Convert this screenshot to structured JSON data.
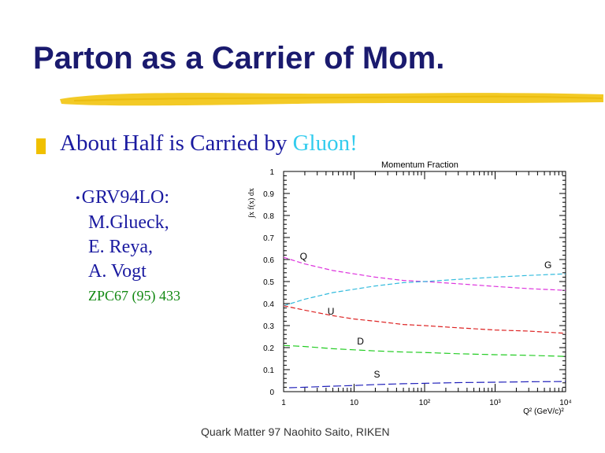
{
  "slide": {
    "title": "Parton as a Carrier of Mom.",
    "headline_main": "About Half is Carried by ",
    "headline_highlight": "Gluon!",
    "sub_items": [
      "GRV94LO:",
      "M.Glueck,",
      "E. Reya,",
      "A. Vogt"
    ],
    "reference": "ZPC67 (95) 433",
    "footer": "Quark Matter 97  Naohito Saito, RIKEN"
  },
  "colors": {
    "title": "#1a1a6e",
    "text": "#1a1aa0",
    "highlight": "#33ccee",
    "reference": "#118811",
    "bullet": "#f0c000",
    "brush": "#f2c71a"
  },
  "chart_data": {
    "type": "line",
    "title": "Momentum Fraction",
    "ylabel": "∫x f(x) dx",
    "xlabel": "Q² (GeV/c)²",
    "xscale": "log",
    "xlim": [
      1,
      10000
    ],
    "ylim": [
      0,
      1
    ],
    "x_ticks": [
      "1",
      "10",
      "10²",
      "10³",
      "10⁴"
    ],
    "y_ticks": [
      "0",
      "0.1",
      "0.2",
      "0.3",
      "0.4",
      "0.5",
      "0.6",
      "0.7",
      "0.8",
      "0.9",
      "1"
    ],
    "series": [
      {
        "name": "Q",
        "color": "#dd33dd",
        "dash": "6,3",
        "x": [
          1,
          2,
          5,
          10,
          20,
          50,
          100,
          300,
          1000,
          3000,
          10000
        ],
        "y": [
          0.61,
          0.58,
          0.55,
          0.535,
          0.52,
          0.505,
          0.5,
          0.49,
          0.478,
          0.468,
          0.46
        ]
      },
      {
        "name": "G",
        "color": "#33bbdd",
        "dash": "6,3",
        "x": [
          1,
          2,
          5,
          10,
          20,
          50,
          100,
          300,
          1000,
          3000,
          10000
        ],
        "y": [
          0.39,
          0.42,
          0.45,
          0.465,
          0.48,
          0.495,
          0.5,
          0.51,
          0.52,
          0.528,
          0.535
        ]
      },
      {
        "name": "U",
        "color": "#dd2222",
        "dash": "6,3",
        "x": [
          1,
          2,
          5,
          10,
          20,
          50,
          100,
          300,
          1000,
          3000,
          10000
        ],
        "y": [
          0.39,
          0.37,
          0.345,
          0.33,
          0.32,
          0.305,
          0.3,
          0.29,
          0.28,
          0.275,
          0.265
        ]
      },
      {
        "name": "D",
        "color": "#22cc22",
        "dash": "8,4",
        "x": [
          1,
          2,
          5,
          10,
          20,
          50,
          100,
          300,
          1000,
          3000,
          10000
        ],
        "y": [
          0.21,
          0.205,
          0.195,
          0.19,
          0.185,
          0.18,
          0.178,
          0.172,
          0.168,
          0.165,
          0.16
        ]
      },
      {
        "name": "S",
        "color": "#2222bb",
        "dash": "10,4",
        "x": [
          1.2,
          2,
          5,
          10,
          20,
          50,
          100,
          300,
          1000,
          3000,
          10000
        ],
        "y": [
          0.018,
          0.02,
          0.025,
          0.028,
          0.032,
          0.036,
          0.038,
          0.041,
          0.043,
          0.045,
          0.046
        ]
      }
    ],
    "annotations": [
      "Q",
      "G",
      "U",
      "D",
      "S"
    ]
  }
}
